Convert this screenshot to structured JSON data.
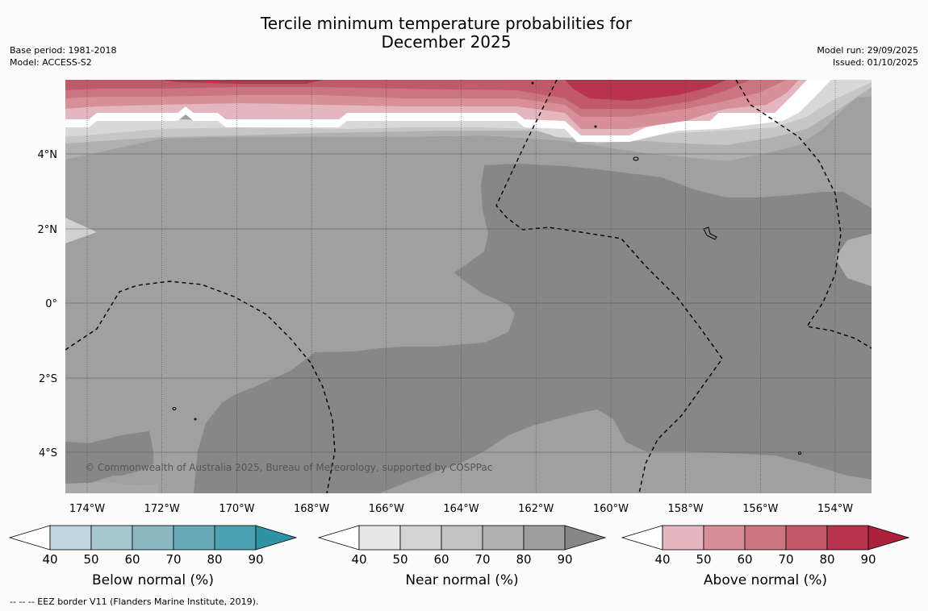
{
  "title": {
    "line1": "Tercile minimum temperature probabilities for",
    "line2": "December 2025"
  },
  "meta_left": {
    "base_period": "Base period: 1981-2018",
    "model": "Model: ACCESS-S2"
  },
  "meta_right": {
    "model_run": "Model run: 29/09/2025",
    "issued": "Issued: 01/10/2025"
  },
  "map": {
    "lat_labels": [
      "4°N",
      "2°N",
      "0°",
      "2°S",
      "4°S"
    ],
    "lon_labels": [
      "174°W",
      "172°W",
      "170°W",
      "168°W",
      "166°W",
      "164°W",
      "162°W",
      "160°W",
      "158°W",
      "156°W",
      "154°W"
    ],
    "credit": "© Commonwealth of Australia 2025, Bureau of Meteorology, supported by COSPPac"
  },
  "colorbars": [
    {
      "label": "Below normal (%)",
      "ticks": [
        "40",
        "50",
        "60",
        "70",
        "80",
        "90"
      ],
      "colors": [
        "#ffffff",
        "#bdd5dc",
        "#a6c7cd",
        "#8bb7c3",
        "#6aabba",
        "#4a9fb0",
        "#2f93a6"
      ]
    },
    {
      "label": "Near normal (%)",
      "ticks": [
        "40",
        "50",
        "60",
        "70",
        "80",
        "90"
      ],
      "colors": [
        "#ffffff",
        "#e7e7e7",
        "#d4d4d4",
        "#c2c2c2",
        "#b0b0b0",
        "#9e9e9e",
        "#878787"
      ]
    },
    {
      "label": "Above normal (%)",
      "ticks": [
        "40",
        "50",
        "60",
        "70",
        "80",
        "90"
      ],
      "colors": [
        "#ffffff",
        "#e3b7bd",
        "#d78f99",
        "#cb7581",
        "#c05a6a",
        "#b8334d",
        "#a9213b"
      ]
    }
  ],
  "footnote": "--  --  -- EEZ border V11 (Flanders Marine Institute, 2019)."
}
